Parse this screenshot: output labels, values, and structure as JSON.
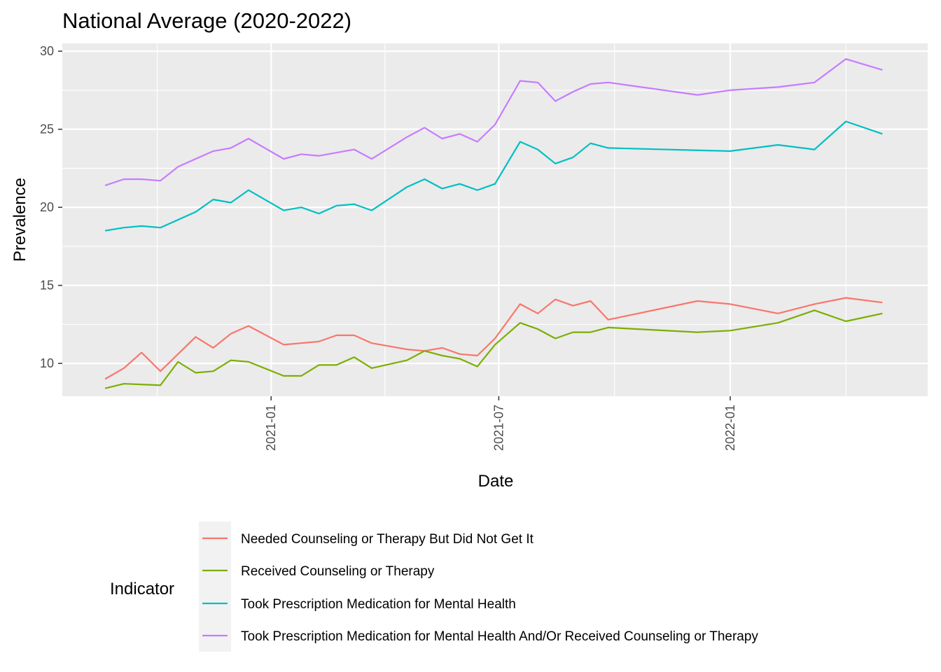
{
  "chart_data": {
    "type": "line",
    "title": "National Average (2020-2022)",
    "xlabel": "Date",
    "ylabel": "Prevalence",
    "ylim": [
      7.9,
      30.5
    ],
    "xlim": [
      "2020-07-19",
      "2022-06-07"
    ],
    "x_ticks": [
      {
        "date": "2021-01-01",
        "label": "2021-01"
      },
      {
        "date": "2021-07-01",
        "label": "2021-07"
      },
      {
        "date": "2022-01-01",
        "label": "2022-01"
      }
    ],
    "y_ticks": [
      10,
      15,
      20,
      25,
      30
    ],
    "grid": true,
    "legend_title": "Indicator",
    "legend_position": "bottom",
    "series": [
      {
        "name": "Needed Counseling or Therapy But Did Not Get It",
        "color": "#F8766D",
        "points": [
          [
            "2020-08-22",
            9.0
          ],
          [
            "2020-09-06",
            9.7
          ],
          [
            "2020-09-20",
            10.7
          ],
          [
            "2020-10-05",
            9.5
          ],
          [
            "2020-10-19",
            10.6
          ],
          [
            "2020-11-02",
            11.7
          ],
          [
            "2020-11-16",
            11.0
          ],
          [
            "2020-11-30",
            11.9
          ],
          [
            "2020-12-14",
            12.4
          ],
          [
            "2021-01-11",
            11.2
          ],
          [
            "2021-01-25",
            11.3
          ],
          [
            "2021-02-08",
            11.4
          ],
          [
            "2021-02-22",
            11.8
          ],
          [
            "2021-03-08",
            11.8
          ],
          [
            "2021-03-22",
            11.3
          ],
          [
            "2021-04-19",
            10.9
          ],
          [
            "2021-05-03",
            10.8
          ],
          [
            "2021-05-17",
            11.0
          ],
          [
            "2021-05-31",
            10.6
          ],
          [
            "2021-06-14",
            10.5
          ],
          [
            "2021-06-28",
            11.6
          ],
          [
            "2021-07-18",
            13.8
          ],
          [
            "2021-08-01",
            13.2
          ],
          [
            "2021-08-15",
            14.1
          ],
          [
            "2021-08-29",
            13.7
          ],
          [
            "2021-09-12",
            14.0
          ],
          [
            "2021-09-26",
            12.8
          ],
          [
            "2021-12-06",
            14.0
          ],
          [
            "2022-01-01",
            13.8
          ],
          [
            "2022-02-08",
            13.2
          ],
          [
            "2022-03-09",
            13.8
          ],
          [
            "2022-04-03",
            14.2
          ],
          [
            "2022-05-02",
            13.9
          ]
        ]
      },
      {
        "name": "Received Counseling or Therapy",
        "color": "#7CAE00",
        "points": [
          [
            "2020-08-22",
            8.4
          ],
          [
            "2020-09-06",
            8.7
          ],
          [
            "2020-10-05",
            8.6
          ],
          [
            "2020-10-19",
            10.1
          ],
          [
            "2020-11-02",
            9.4
          ],
          [
            "2020-11-16",
            9.5
          ],
          [
            "2020-11-30",
            10.2
          ],
          [
            "2020-12-14",
            10.1
          ],
          [
            "2021-01-11",
            9.2
          ],
          [
            "2021-01-25",
            9.2
          ],
          [
            "2021-02-08",
            9.9
          ],
          [
            "2021-02-22",
            9.9
          ],
          [
            "2021-03-08",
            10.4
          ],
          [
            "2021-03-22",
            9.7
          ],
          [
            "2021-04-19",
            10.2
          ],
          [
            "2021-05-03",
            10.8
          ],
          [
            "2021-05-17",
            10.5
          ],
          [
            "2021-05-31",
            10.3
          ],
          [
            "2021-06-14",
            9.8
          ],
          [
            "2021-06-28",
            11.2
          ],
          [
            "2021-07-18",
            12.6
          ],
          [
            "2021-08-01",
            12.2
          ],
          [
            "2021-08-15",
            11.6
          ],
          [
            "2021-08-29",
            12.0
          ],
          [
            "2021-09-12",
            12.0
          ],
          [
            "2021-09-26",
            12.3
          ],
          [
            "2021-12-06",
            12.0
          ],
          [
            "2022-01-01",
            12.1
          ],
          [
            "2022-02-08",
            12.6
          ],
          [
            "2022-03-09",
            13.4
          ],
          [
            "2022-04-03",
            12.7
          ],
          [
            "2022-05-02",
            13.2
          ]
        ]
      },
      {
        "name": "Took Prescription Medication for Mental Health",
        "color": "#00BFC4",
        "points": [
          [
            "2020-08-22",
            18.5
          ],
          [
            "2020-09-06",
            18.7
          ],
          [
            "2020-09-20",
            18.8
          ],
          [
            "2020-10-05",
            18.7
          ],
          [
            "2020-10-19",
            19.2
          ],
          [
            "2020-11-02",
            19.7
          ],
          [
            "2020-11-16",
            20.5
          ],
          [
            "2020-11-30",
            20.3
          ],
          [
            "2020-12-14",
            21.1
          ],
          [
            "2021-01-11",
            19.8
          ],
          [
            "2021-01-25",
            20.0
          ],
          [
            "2021-02-08",
            19.6
          ],
          [
            "2021-02-22",
            20.1
          ],
          [
            "2021-03-08",
            20.2
          ],
          [
            "2021-03-22",
            19.8
          ],
          [
            "2021-04-19",
            21.3
          ],
          [
            "2021-05-03",
            21.8
          ],
          [
            "2021-05-17",
            21.2
          ],
          [
            "2021-05-31",
            21.5
          ],
          [
            "2021-06-14",
            21.1
          ],
          [
            "2021-06-28",
            21.5
          ],
          [
            "2021-07-18",
            24.2
          ],
          [
            "2021-08-01",
            23.7
          ],
          [
            "2021-08-15",
            22.8
          ],
          [
            "2021-08-29",
            23.2
          ],
          [
            "2021-09-12",
            24.1
          ],
          [
            "2021-09-26",
            23.8
          ],
          [
            "2022-01-01",
            23.6
          ],
          [
            "2022-02-08",
            24.0
          ],
          [
            "2022-03-09",
            23.7
          ],
          [
            "2022-04-03",
            25.5
          ],
          [
            "2022-05-02",
            24.7
          ]
        ]
      },
      {
        "name": "Took Prescription Medication for Mental Health And/Or Received Counseling or Therapy",
        "color": "#C77CFF",
        "points": [
          [
            "2020-08-22",
            21.4
          ],
          [
            "2020-09-06",
            21.8
          ],
          [
            "2020-09-20",
            21.8
          ],
          [
            "2020-10-05",
            21.7
          ],
          [
            "2020-10-19",
            22.6
          ],
          [
            "2020-11-02",
            23.1
          ],
          [
            "2020-11-16",
            23.6
          ],
          [
            "2020-11-30",
            23.8
          ],
          [
            "2020-12-14",
            24.4
          ],
          [
            "2021-01-11",
            23.1
          ],
          [
            "2021-01-25",
            23.4
          ],
          [
            "2021-02-08",
            23.3
          ],
          [
            "2021-02-22",
            23.5
          ],
          [
            "2021-03-08",
            23.7
          ],
          [
            "2021-03-22",
            23.1
          ],
          [
            "2021-04-19",
            24.5
          ],
          [
            "2021-05-03",
            25.1
          ],
          [
            "2021-05-17",
            24.4
          ],
          [
            "2021-05-31",
            24.7
          ],
          [
            "2021-06-14",
            24.2
          ],
          [
            "2021-06-28",
            25.3
          ],
          [
            "2021-07-18",
            28.1
          ],
          [
            "2021-08-01",
            28.0
          ],
          [
            "2021-08-15",
            26.8
          ],
          [
            "2021-08-29",
            27.4
          ],
          [
            "2021-09-12",
            27.9
          ],
          [
            "2021-09-26",
            28.0
          ],
          [
            "2021-12-06",
            27.2
          ],
          [
            "2022-01-01",
            27.5
          ],
          [
            "2022-02-08",
            27.7
          ],
          [
            "2022-03-09",
            28.0
          ],
          [
            "2022-04-03",
            29.5
          ],
          [
            "2022-05-02",
            28.8
          ]
        ]
      }
    ]
  }
}
